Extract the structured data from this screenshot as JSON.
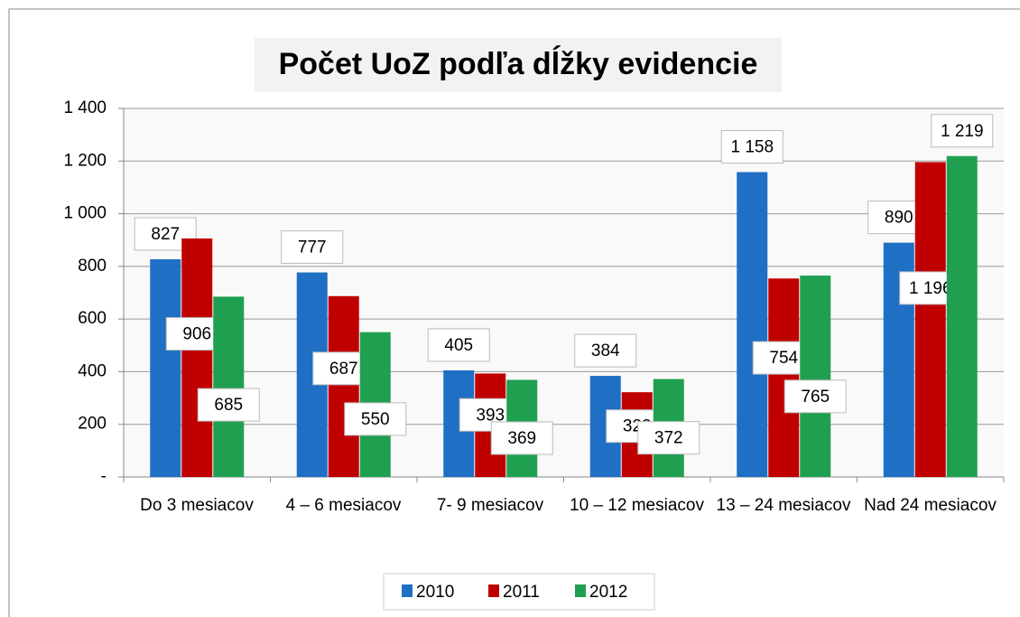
{
  "chart_data": {
    "type": "bar",
    "title": "Počet UoZ podľa dĺžky evidencie",
    "categories": [
      "Do 3 mesiacov",
      "4 – 6 mesiacov",
      "7- 9 mesiacov",
      "10 – 12 mesiacov",
      "13 – 24 mesiacov",
      "Nad 24 mesiacov"
    ],
    "series": [
      {
        "name": "2010",
        "color": "#1f6fc5",
        "values": [
          827,
          777,
          405,
          384,
          1158,
          890
        ],
        "value_labels": [
          "827",
          "777",
          "405",
          "384",
          "1 158",
          "890"
        ]
      },
      {
        "name": "2011",
        "color": "#c00000",
        "values": [
          906,
          687,
          393,
          322,
          754,
          1196
        ],
        "value_labels": [
          "906",
          "687",
          "393",
          "322",
          "754",
          "1 196"
        ]
      },
      {
        "name": "2012",
        "color": "#1fa050",
        "values": [
          685,
          550,
          369,
          372,
          765,
          1219
        ],
        "value_labels": [
          "685",
          "550",
          "369",
          "372",
          "765",
          "1 219"
        ]
      }
    ],
    "ylim": [
      0,
      1400
    ],
    "yticks": [
      {
        "value": 0,
        "label": "-"
      },
      200,
      400,
      600,
      800,
      {
        "value": 1000,
        "label": "1 000"
      },
      {
        "value": 1200,
        "label": "1 200"
      },
      {
        "value": 1400,
        "label": "1 400"
      }
    ],
    "grid": true,
    "legend": "bottom"
  }
}
